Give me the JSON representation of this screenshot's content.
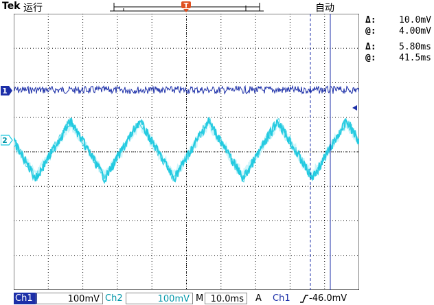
{
  "header": {
    "brand": "Tek",
    "run_state": "运行",
    "trigger_mode": "自动",
    "trigger_marker": "T"
  },
  "readouts": {
    "voltage_delta_symbol": "Δ:",
    "voltage_delta": "10.0mV",
    "voltage_at_symbol": "@:",
    "voltage_at": "4.00mV",
    "time_delta_symbol": "Δ:",
    "time_delta": "5.80ms",
    "time_at_symbol": "@:",
    "time_at": "41.5ms"
  },
  "channels": {
    "ch1_marker": "1",
    "ch2_marker": "2"
  },
  "footer": {
    "ch1_label": "Ch1",
    "ch1_scale": "100mV",
    "ch2_label": "Ch2",
    "ch2_scale": "100mV",
    "timebase_prefix": "M",
    "timebase": "10.0ms",
    "trigger_prefix": "A",
    "trigger_source": "Ch1",
    "trigger_level": "-46.0mV"
  },
  "colors": {
    "ch1": "#1c2fa8",
    "ch2": "#19c8df",
    "cursor": "#1c2fa8",
    "trigger": "#e05020"
  },
  "chart_data": {
    "type": "line",
    "grid": true,
    "divisions": {
      "horizontal": 10,
      "vertical": 8
    },
    "series": [
      {
        "name": "Ch1",
        "shape": "flat-noisy"
      },
      {
        "name": "Ch2",
        "shape": "triangle-noisy",
        "periods_on_screen": 5
      }
    ]
  }
}
